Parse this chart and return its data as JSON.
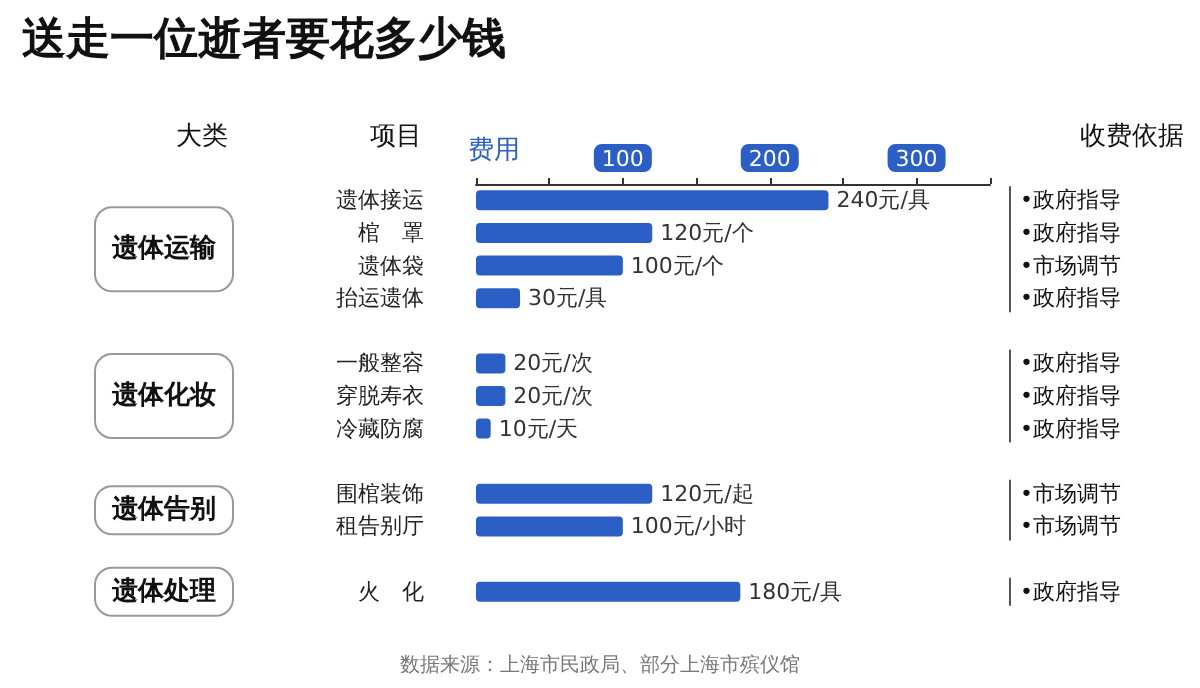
{
  "chart_data": {
    "type": "bar",
    "orientation": "horizontal",
    "title": "送走一位逝者要花多少钱",
    "xlabel": "费用",
    "categories": [
      "遗体接运",
      "棺　罩",
      "遗体袋",
      "抬运遗体",
      null,
      "一般整容",
      "穿脱寿衣",
      "冷藏防腐",
      null,
      "围棺装饰",
      "租告别厅",
      null,
      "火　化"
    ],
    "values": [
      240,
      120,
      100,
      30,
      null,
      20,
      20,
      10,
      null,
      120,
      100,
      null,
      180
    ],
    "value_labels": [
      "240元/具",
      "120元/个",
      "100元/个",
      "30元/具",
      null,
      "20元/次",
      "20元/次",
      "10元/天",
      null,
      "120元/起",
      "100元/小时",
      null,
      "180元/具"
    ],
    "color": "#2b5fc6",
    "xlim": [
      0,
      350
    ],
    "xticks": [
      {
        "value": 0,
        "label": null
      },
      {
        "value": 50,
        "label": null
      },
      100,
      {
        "value": 150,
        "label": null
      },
      200,
      {
        "value": 250,
        "label": null
      },
      300,
      {
        "value": 350,
        "label": null
      }
    ],
    "grid": false,
    "annotations": [
      "大类",
      "项目",
      "收费依据",
      "遗体运输",
      "遗体化妆",
      "遗体告别",
      "遗体处理",
      "数据来源：上海市民政局、部分上海市殡仪馆",
      "•政府指导",
      "•政府指导",
      "•市场调节",
      "•政府指导",
      "•政府指导",
      "•政府指导",
      "•政府指导",
      "•市场调节",
      "•市场调节",
      "•政府指导"
    ]
  }
}
